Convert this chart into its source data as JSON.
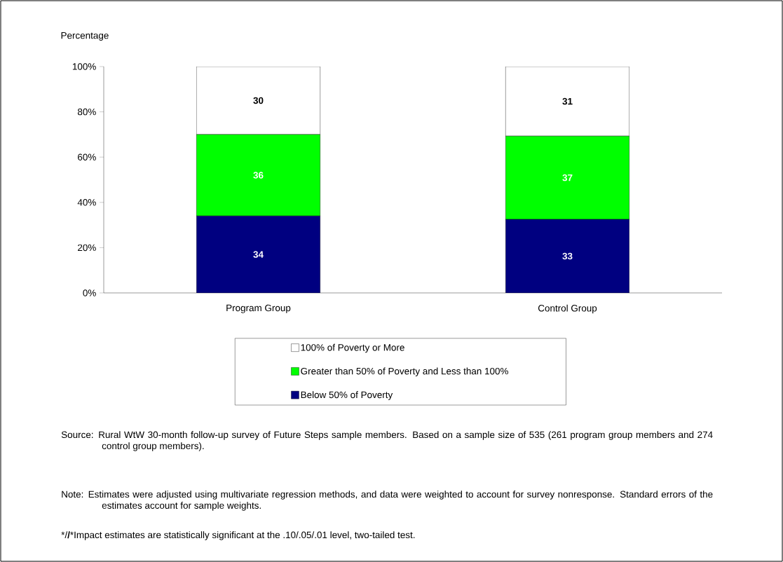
{
  "chart_data": {
    "type": "bar",
    "stacked": true,
    "ylabel": "Percentage",
    "categories": [
      "Program Group",
      "Control Group"
    ],
    "series": [
      {
        "name": "Below 50% of Poverty",
        "color": "#000080",
        "values": [
          34,
          32.5
        ],
        "value_labels": [
          "34",
          "33"
        ]
      },
      {
        "name": "Greater than 50% of Poverty and Less than 100%",
        "color": "#00ff00",
        "values": [
          36,
          36.8
        ],
        "value_labels": [
          "36",
          "37"
        ]
      },
      {
        "name": "100% of Poverty or More",
        "color": "#ffffff",
        "values": [
          30,
          30.7
        ],
        "value_labels": [
          "30",
          "31"
        ]
      }
    ],
    "ylim": [
      0,
      100
    ],
    "yticks": [
      {
        "value": 0,
        "label": "0%"
      },
      {
        "value": 20,
        "label": "20%"
      },
      {
        "value": 40,
        "label": "40%"
      },
      {
        "value": 60,
        "label": "60%"
      },
      {
        "value": 80,
        "label": "80%"
      },
      {
        "value": 100,
        "label": "100%"
      }
    ],
    "legend": "bottom",
    "annotations": [
      "Source: Rural WtW 30-month follow-up survey of Future Steps sample members. Based on a sample size of 535 (261 program group members and 274 control group members).",
      "Note: Estimates were adjusted using multivariate regression methods, and data were weighted to account for survey nonresponse. Standard errors of the estimates account for sample weights.",
      "*/**/***Impact estimates are statistically significant at the .10/.05/.01 level, two-tailed test."
    ]
  }
}
